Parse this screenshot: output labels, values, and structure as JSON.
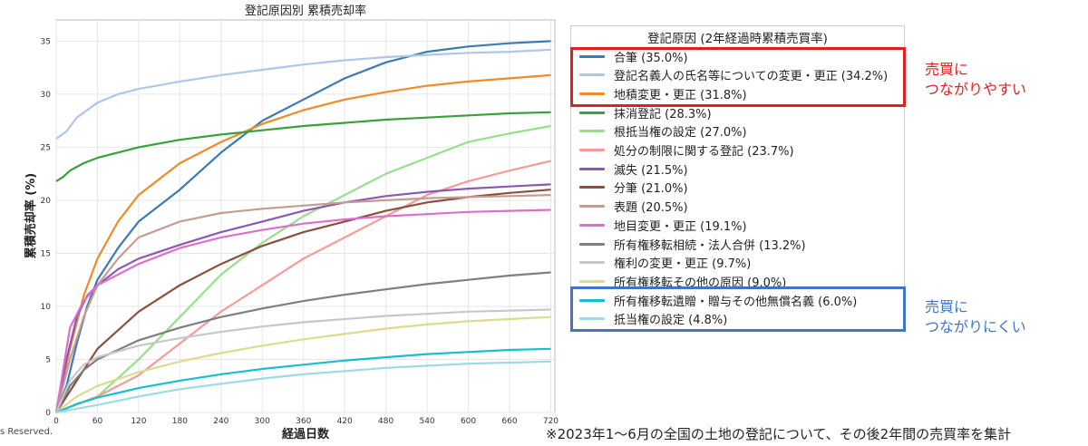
{
  "chart_data": {
    "type": "line",
    "title": "登記原因別 累積売却率",
    "xlabel": "経過日数",
    "ylabel": "累積売却率 (%)",
    "xlim": [
      0,
      726
    ],
    "ylim": [
      0,
      37
    ],
    "xticks": [
      0,
      60,
      120,
      180,
      240,
      300,
      360,
      420,
      480,
      540,
      600,
      660,
      720
    ],
    "yticks": [
      0,
      5,
      10,
      15,
      20,
      25,
      30,
      35
    ],
    "grid": true,
    "legend_position": "right",
    "legend_title": "登記原因 (2年経過時累積売買率)",
    "series": [
      {
        "name": "合筆 (35.0%)",
        "color": "#3a7ab5",
        "points": [
          [
            0,
            0
          ],
          [
            15,
            2.5
          ],
          [
            30,
            6.5
          ],
          [
            45,
            10
          ],
          [
            60,
            12.5
          ],
          [
            90,
            15.5
          ],
          [
            120,
            18
          ],
          [
            180,
            21
          ],
          [
            240,
            24.5
          ],
          [
            300,
            27.5
          ],
          [
            360,
            29.5
          ],
          [
            420,
            31.5
          ],
          [
            480,
            33
          ],
          [
            540,
            34
          ],
          [
            600,
            34.5
          ],
          [
            660,
            34.8
          ],
          [
            720,
            35.0
          ]
        ]
      },
      {
        "name": "登記名義人の氏名等についての変更・更正 (34.2%)",
        "color": "#aec7e8",
        "points": [
          [
            0,
            25.8
          ],
          [
            15,
            26.5
          ],
          [
            30,
            27.8
          ],
          [
            60,
            29.2
          ],
          [
            90,
            30
          ],
          [
            120,
            30.5
          ],
          [
            180,
            31.2
          ],
          [
            240,
            31.8
          ],
          [
            300,
            32.3
          ],
          [
            360,
            32.8
          ],
          [
            420,
            33.2
          ],
          [
            480,
            33.5
          ],
          [
            540,
            33.7
          ],
          [
            600,
            33.9
          ],
          [
            660,
            34.0
          ],
          [
            720,
            34.2
          ]
        ]
      },
      {
        "name": "地積変更・更正 (31.8%)",
        "color": "#f28a28",
        "points": [
          [
            0,
            0
          ],
          [
            20,
            6
          ],
          [
            40,
            11
          ],
          [
            60,
            14.5
          ],
          [
            90,
            18
          ],
          [
            120,
            20.5
          ],
          [
            180,
            23.5
          ],
          [
            240,
            25.5
          ],
          [
            300,
            27.2
          ],
          [
            360,
            28.5
          ],
          [
            420,
            29.5
          ],
          [
            480,
            30.2
          ],
          [
            540,
            30.8
          ],
          [
            600,
            31.2
          ],
          [
            660,
            31.5
          ],
          [
            720,
            31.8
          ]
        ]
      },
      {
        "name": "抹消登記 (28.3%)",
        "color": "#38a13a",
        "points": [
          [
            0,
            21.8
          ],
          [
            10,
            22.2
          ],
          [
            20,
            22.8
          ],
          [
            40,
            23.5
          ],
          [
            60,
            24
          ],
          [
            120,
            25
          ],
          [
            180,
            25.7
          ],
          [
            240,
            26.2
          ],
          [
            300,
            26.6
          ],
          [
            360,
            27
          ],
          [
            420,
            27.3
          ],
          [
            480,
            27.6
          ],
          [
            540,
            27.8
          ],
          [
            600,
            28
          ],
          [
            660,
            28.2
          ],
          [
            720,
            28.3
          ]
        ]
      },
      {
        "name": "根抵当権の設定 (27.0%)",
        "color": "#98df8a",
        "points": [
          [
            0,
            0
          ],
          [
            60,
            1.5
          ],
          [
            120,
            5
          ],
          [
            180,
            9
          ],
          [
            240,
            13
          ],
          [
            300,
            16
          ],
          [
            360,
            18.5
          ],
          [
            420,
            20.5
          ],
          [
            480,
            22.5
          ],
          [
            540,
            24
          ],
          [
            600,
            25.5
          ],
          [
            660,
            26.3
          ],
          [
            720,
            27.0
          ]
        ]
      },
      {
        "name": "処分の制限に関する登記 (23.7%)",
        "color": "#f59a9a",
        "points": [
          [
            0,
            0
          ],
          [
            60,
            1.5
          ],
          [
            120,
            3.5
          ],
          [
            180,
            6.5
          ],
          [
            240,
            9.5
          ],
          [
            300,
            12
          ],
          [
            360,
            14.5
          ],
          [
            420,
            16.5
          ],
          [
            480,
            18.5
          ],
          [
            540,
            20.5
          ],
          [
            600,
            21.8
          ],
          [
            660,
            22.8
          ],
          [
            720,
            23.7
          ]
        ]
      },
      {
        "name": "滅失 (21.5%)",
        "color": "#8c58b5",
        "points": [
          [
            0,
            0
          ],
          [
            15,
            5
          ],
          [
            30,
            9
          ],
          [
            45,
            11
          ],
          [
            60,
            12
          ],
          [
            90,
            13.5
          ],
          [
            120,
            14.5
          ],
          [
            180,
            15.8
          ],
          [
            240,
            17
          ],
          [
            300,
            18
          ],
          [
            360,
            19
          ],
          [
            420,
            19.8
          ],
          [
            480,
            20.4
          ],
          [
            540,
            20.8
          ],
          [
            600,
            21.1
          ],
          [
            660,
            21.3
          ],
          [
            720,
            21.5
          ]
        ]
      },
      {
        "name": "分筆 (21.0%)",
        "color": "#8c4f3d",
        "points": [
          [
            0,
            0
          ],
          [
            30,
            3
          ],
          [
            60,
            6
          ],
          [
            120,
            9.5
          ],
          [
            180,
            12
          ],
          [
            240,
            14
          ],
          [
            300,
            15.7
          ],
          [
            360,
            17
          ],
          [
            420,
            18
          ],
          [
            480,
            19
          ],
          [
            540,
            19.8
          ],
          [
            600,
            20.3
          ],
          [
            660,
            20.7
          ],
          [
            720,
            21.0
          ]
        ]
      },
      {
        "name": "表題 (20.5%)",
        "color": "#c49c94",
        "points": [
          [
            0,
            0
          ],
          [
            20,
            5
          ],
          [
            40,
            9
          ],
          [
            60,
            12
          ],
          [
            90,
            14.5
          ],
          [
            120,
            16.5
          ],
          [
            180,
            18
          ],
          [
            240,
            18.8
          ],
          [
            300,
            19.2
          ],
          [
            360,
            19.5
          ],
          [
            420,
            19.8
          ],
          [
            480,
            20
          ],
          [
            540,
            20.2
          ],
          [
            600,
            20.3
          ],
          [
            660,
            20.4
          ],
          [
            720,
            20.5
          ]
        ]
      },
      {
        "name": "地目変更・更正 (19.1%)",
        "color": "#dd6ecb",
        "points": [
          [
            0,
            0
          ],
          [
            10,
            4
          ],
          [
            20,
            8
          ],
          [
            40,
            10.5
          ],
          [
            60,
            12
          ],
          [
            120,
            14
          ],
          [
            180,
            15.5
          ],
          [
            240,
            16.5
          ],
          [
            300,
            17.2
          ],
          [
            360,
            17.8
          ],
          [
            420,
            18.2
          ],
          [
            480,
            18.5
          ],
          [
            540,
            18.7
          ],
          [
            600,
            18.9
          ],
          [
            660,
            19
          ],
          [
            720,
            19.1
          ]
        ]
      },
      {
        "name": "所有権移転相続・法人合併 (13.2%)",
        "color": "#7f7f7f",
        "points": [
          [
            0,
            0
          ],
          [
            20,
            2.5
          ],
          [
            40,
            4
          ],
          [
            60,
            5
          ],
          [
            120,
            6.8
          ],
          [
            180,
            8
          ],
          [
            240,
            9
          ],
          [
            300,
            9.8
          ],
          [
            360,
            10.5
          ],
          [
            420,
            11.1
          ],
          [
            480,
            11.6
          ],
          [
            540,
            12.1
          ],
          [
            600,
            12.5
          ],
          [
            660,
            12.9
          ],
          [
            720,
            13.2
          ]
        ]
      },
      {
        "name": "権利の変更・更正 (9.7%)",
        "color": "#c7c7c7",
        "points": [
          [
            0,
            0
          ],
          [
            20,
            3
          ],
          [
            40,
            4.5
          ],
          [
            60,
            5.2
          ],
          [
            120,
            6.3
          ],
          [
            180,
            7
          ],
          [
            240,
            7.6
          ],
          [
            300,
            8.1
          ],
          [
            360,
            8.5
          ],
          [
            420,
            8.8
          ],
          [
            480,
            9.1
          ],
          [
            540,
            9.3
          ],
          [
            600,
            9.5
          ],
          [
            660,
            9.6
          ],
          [
            720,
            9.7
          ]
        ]
      },
      {
        "name": "所有権移転その他の原因 (9.0%)",
        "color": "#dbdb8d",
        "points": [
          [
            0,
            0
          ],
          [
            30,
            1.5
          ],
          [
            60,
            2.5
          ],
          [
            120,
            3.8
          ],
          [
            180,
            4.8
          ],
          [
            240,
            5.6
          ],
          [
            300,
            6.3
          ],
          [
            360,
            6.9
          ],
          [
            420,
            7.4
          ],
          [
            480,
            7.9
          ],
          [
            540,
            8.3
          ],
          [
            600,
            8.6
          ],
          [
            660,
            8.8
          ],
          [
            720,
            9.0
          ]
        ]
      },
      {
        "name": "所有権移転遺贈・贈与その他無償名義 (6.0%)",
        "color": "#17becf",
        "points": [
          [
            0,
            0
          ],
          [
            30,
            0.8
          ],
          [
            60,
            1.4
          ],
          [
            120,
            2.3
          ],
          [
            180,
            3
          ],
          [
            240,
            3.6
          ],
          [
            300,
            4.1
          ],
          [
            360,
            4.5
          ],
          [
            420,
            4.9
          ],
          [
            480,
            5.2
          ],
          [
            540,
            5.5
          ],
          [
            600,
            5.7
          ],
          [
            660,
            5.9
          ],
          [
            720,
            6.0
          ]
        ]
      },
      {
        "name": "抵当権の設定 (4.8%)",
        "color": "#9edae5",
        "points": [
          [
            0,
            0
          ],
          [
            60,
            0.7
          ],
          [
            120,
            1.5
          ],
          [
            180,
            2.2
          ],
          [
            240,
            2.7
          ],
          [
            300,
            3.2
          ],
          [
            360,
            3.6
          ],
          [
            420,
            3.9
          ],
          [
            480,
            4.2
          ],
          [
            540,
            4.4
          ],
          [
            600,
            4.6
          ],
          [
            660,
            4.7
          ],
          [
            720,
            4.8
          ]
        ]
      }
    ]
  },
  "callouts": {
    "red_line1": "売買に",
    "red_line2": "つながりやすい",
    "red_color": "#e0201f",
    "blue_line1": "売買に",
    "blue_line2": "つながりにくい",
    "blue_color": "#4472c4"
  },
  "footnote": "※2023年1～6月の全国の土地の登記について、その後2年間の売買率を集計",
  "copyright": "s Reserved."
}
